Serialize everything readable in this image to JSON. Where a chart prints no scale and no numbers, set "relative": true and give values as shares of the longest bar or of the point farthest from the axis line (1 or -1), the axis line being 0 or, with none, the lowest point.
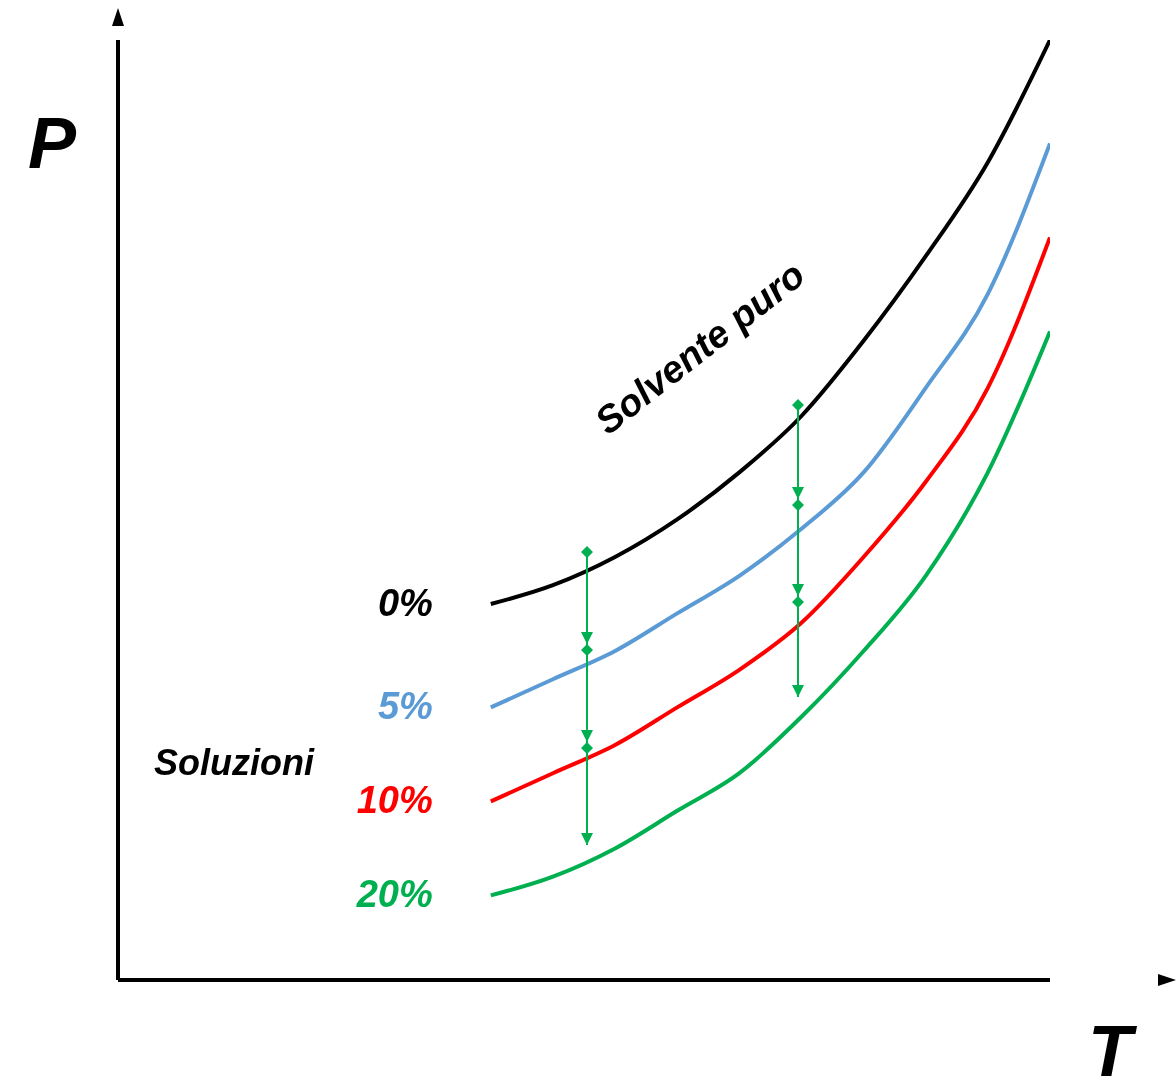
{
  "chart_data": {
    "type": "line",
    "relative": true,
    "xlabel": "T",
    "ylabel": "P",
    "categories": [
      null,
      null,
      null,
      null,
      null,
      null,
      null,
      null,
      null,
      null,
      null,
      null,
      null,
      null,
      null,
      null
    ],
    "series": [
      {
        "name": "0%",
        "color": "#000000",
        "values": [
          null,
          null,
          null,
          null,
          null,
          null,
          0.4,
          0.42,
          0.45,
          0.49,
          0.54,
          0.6,
          0.68,
          0.77,
          0.87,
          1
        ]
      },
      {
        "name": "5%",
        "color": "#5b9bd5",
        "values": [
          null,
          null,
          null,
          null,
          null,
          null,
          0.29,
          0.32,
          0.35,
          0.39,
          0.43,
          0.48,
          0.54,
          0.63,
          0.73,
          0.89
        ]
      },
      {
        "name": "10%",
        "color": "#ff0000",
        "values": [
          null,
          null,
          null,
          null,
          null,
          null,
          0.19,
          0.22,
          0.25,
          0.29,
          0.33,
          0.38,
          0.45,
          0.53,
          0.63,
          0.79
        ]
      },
      {
        "name": "20%",
        "color": "#00b050",
        "values": [
          null,
          null,
          null,
          null,
          null,
          null,
          0.09,
          0.11,
          0.14,
          0.18,
          0.22,
          0.28,
          0.35,
          0.43,
          0.54,
          0.69
        ]
      }
    ],
    "annotations": [
      "Solvente puro",
      "Soluzioni"
    ],
    "grid": false,
    "legend": false,
    "marker": "none",
    "line_style": "solid"
  }
}
